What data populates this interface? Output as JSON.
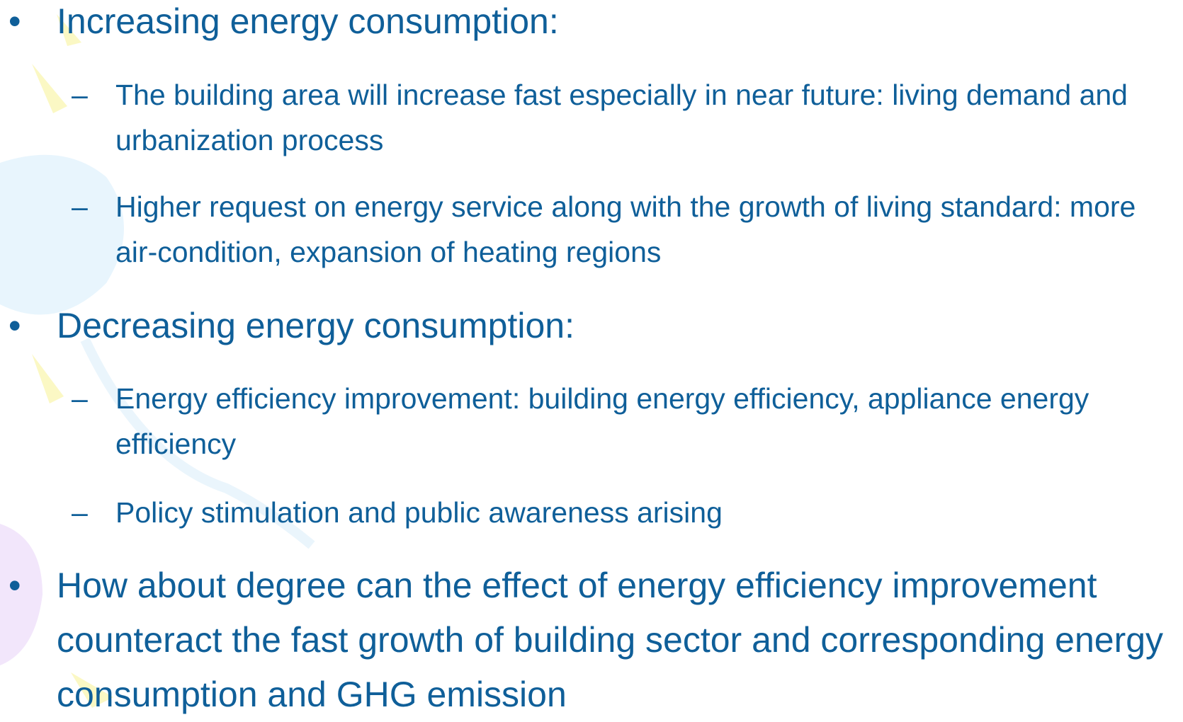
{
  "bullets": [
    {
      "text": "Increasing energy consumption:",
      "items": [
        "The building area will increase fast especially in near future: living demand and urbanization process",
        "Higher request on energy service along with the growth of living standard: more air-condition, expansion of heating regions"
      ]
    },
    {
      "text": "Decreasing energy consumption:",
      "items": [
        "Energy efficiency improvement: building energy efficiency, appliance energy efficiency",
        "Policy stimulation and public awareness arising"
      ]
    },
    {
      "text": "How about degree can the effect of energy efficiency improvement counteract the fast growth of building sector and corresponding energy consumption and GHG emission"
    }
  ]
}
